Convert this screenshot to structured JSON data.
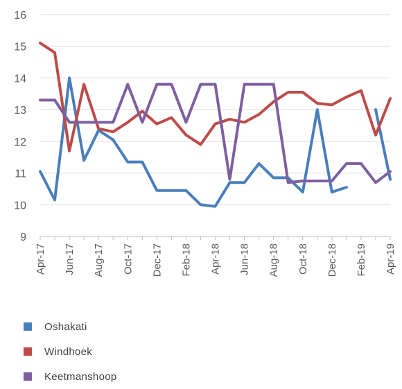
{
  "chart_data": {
    "type": "line",
    "title": "",
    "xlabel": "",
    "ylabel": "",
    "ylim": [
      9,
      16
    ],
    "yticks": [
      9,
      10,
      11,
      12,
      13,
      14,
      15,
      16
    ],
    "grid": true,
    "legend_position": "bottom",
    "x": [
      "Apr-17",
      "May-17",
      "Jun-17",
      "Jul-17",
      "Aug-17",
      "Sep-17",
      "Oct-17",
      "Nov-17",
      "Dec-17",
      "Jan-18",
      "Feb-18",
      "Mar-18",
      "Apr-18",
      "May-18",
      "Jun-18",
      "Jul-18",
      "Aug-18",
      "Sep-18",
      "Oct-18",
      "Nov-18",
      "Dec-18",
      "Jan-19",
      "Feb-19",
      "Mar-19",
      "Apr-19"
    ],
    "xtick_labels": [
      "Apr-17",
      "",
      "Jun-17",
      "",
      "Aug-17",
      "",
      "Oct-17",
      "",
      "Dec-17",
      "",
      "Feb-18",
      "",
      "Apr-18",
      "",
      "Jun-18",
      "",
      "Aug-18",
      "",
      "Oct-18",
      "",
      "Dec-18",
      "",
      "Feb-19",
      "",
      "Apr-19"
    ],
    "series": [
      {
        "name": "Oshakati",
        "color": "#4a7ebb",
        "values": [
          11.05,
          10.15,
          14.0,
          11.4,
          12.35,
          12.05,
          11.35,
          11.35,
          10.45,
          10.45,
          10.45,
          10.0,
          9.95,
          10.7,
          10.7,
          11.3,
          10.85,
          10.85,
          10.4,
          13.0,
          10.4,
          10.55,
          null,
          13.0,
          10.8
        ]
      },
      {
        "name": "Windhoek",
        "color": "#be4b48",
        "values": [
          15.1,
          14.8,
          11.7,
          13.8,
          12.4,
          12.3,
          12.6,
          12.95,
          12.55,
          12.75,
          12.2,
          11.9,
          12.55,
          12.7,
          12.6,
          12.85,
          13.25,
          13.55,
          13.55,
          13.2,
          13.15,
          13.4,
          13.6,
          12.2,
          13.35
        ]
      },
      {
        "name": "Keetmanshoop",
        "color": "#7e5fa0",
        "values": [
          13.3,
          13.3,
          12.6,
          12.6,
          12.6,
          12.6,
          13.8,
          12.6,
          13.8,
          13.8,
          12.6,
          13.8,
          13.8,
          10.8,
          13.8,
          13.8,
          13.8,
          10.7,
          10.75,
          10.75,
          10.75,
          11.3,
          11.3,
          10.7,
          11.05
        ]
      }
    ]
  },
  "legend": {
    "items": [
      {
        "label": "Oshakati",
        "color": "#4a7ebb"
      },
      {
        "label": "Windhoek",
        "color": "#be4b48"
      },
      {
        "label": "Keetmanshoop",
        "color": "#7e5fa0"
      }
    ]
  }
}
